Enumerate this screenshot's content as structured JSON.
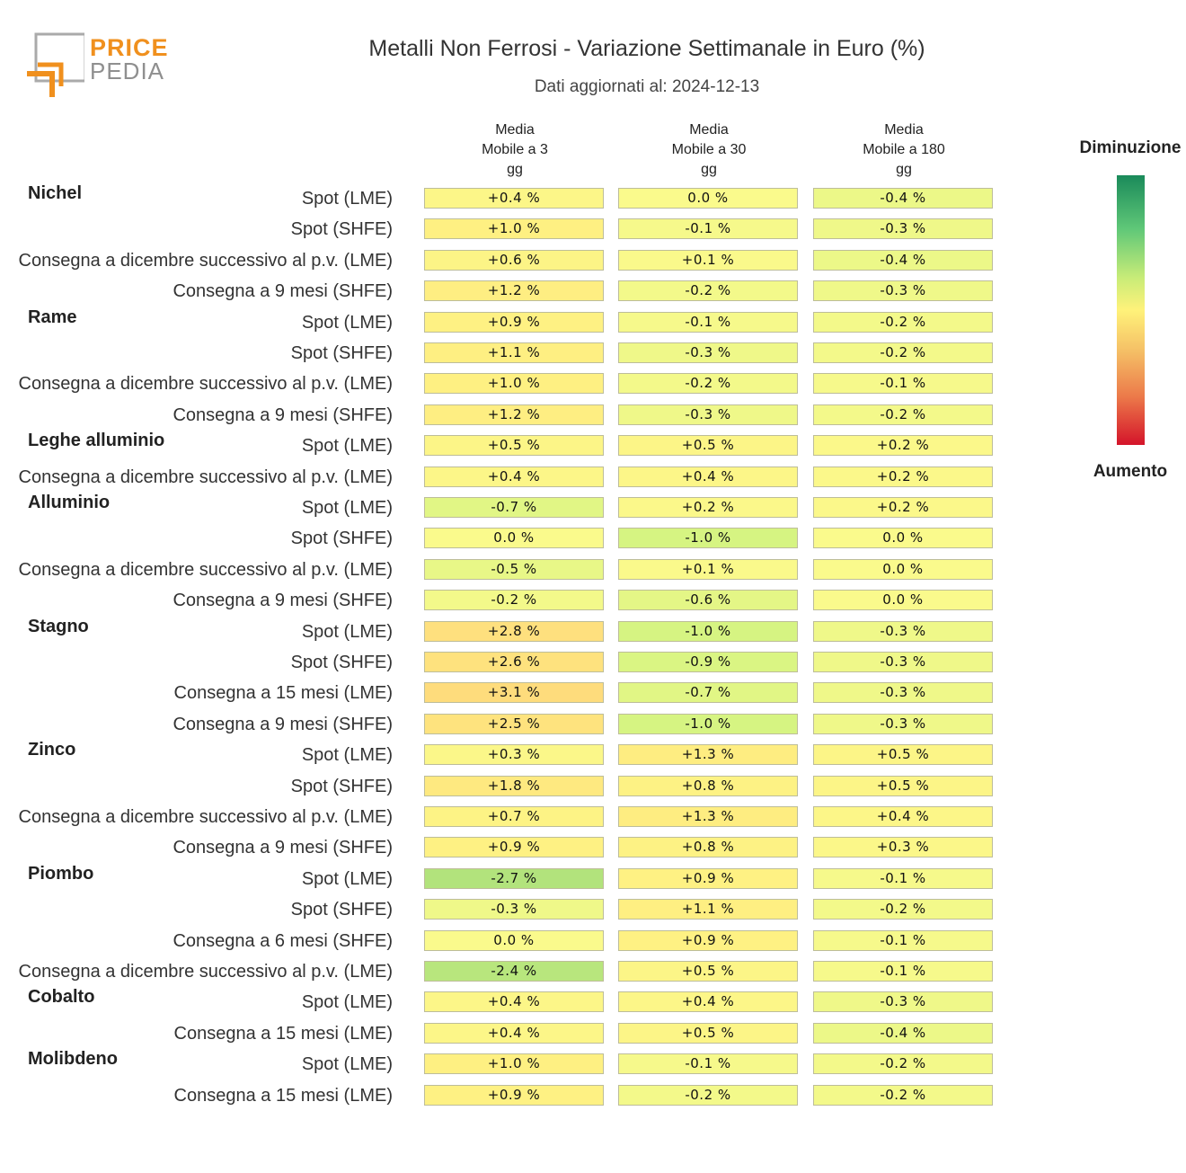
{
  "logo": {
    "line1": "PRICE",
    "line2": "PEDIA"
  },
  "chart_data": {
    "type": "table",
    "title": "Metalli Non Ferrosi - Variazione Settimanale in Euro (%)",
    "subtitle": "Dati aggiornati al: 2024-12-13",
    "columns": [
      "Media\nMobile a 3\ngg",
      "Media\nMobile a 30\ngg",
      "Media\nMobile a 180\ngg"
    ],
    "legend": {
      "top": "Diminuzione",
      "bottom": "Aumento"
    },
    "groups": [
      {
        "name": "Nichel",
        "rows": [
          {
            "label": "Spot (LME)",
            "values": [
              "+0.4 %",
              "0.0 %",
              "-0.4 %"
            ]
          },
          {
            "label": "Spot (SHFE)",
            "values": [
              "+1.0 %",
              "-0.1 %",
              "-0.3 %"
            ]
          },
          {
            "label": "Consegna a dicembre successivo al p.v. (LME)",
            "values": [
              "+0.6 %",
              "+0.1 %",
              "-0.4 %"
            ]
          },
          {
            "label": "Consegna a 9 mesi (SHFE)",
            "values": [
              "+1.2 %",
              "-0.2 %",
              "-0.3 %"
            ]
          }
        ]
      },
      {
        "name": "Rame",
        "rows": [
          {
            "label": "Spot (LME)",
            "values": [
              "+0.9 %",
              "-0.1 %",
              "-0.2 %"
            ]
          },
          {
            "label": "Spot (SHFE)",
            "values": [
              "+1.1 %",
              "-0.3 %",
              "-0.2 %"
            ]
          },
          {
            "label": "Consegna a dicembre successivo al p.v. (LME)",
            "values": [
              "+1.0 %",
              "-0.2 %",
              "-0.1 %"
            ]
          },
          {
            "label": "Consegna a 9 mesi (SHFE)",
            "values": [
              "+1.2 %",
              "-0.3 %",
              "-0.2 %"
            ]
          }
        ]
      },
      {
        "name": "Leghe alluminio",
        "rows": [
          {
            "label": "Spot (LME)",
            "values": [
              "+0.5 %",
              "+0.5 %",
              "+0.2 %"
            ]
          },
          {
            "label": "Consegna a dicembre successivo al p.v. (LME)",
            "values": [
              "+0.4 %",
              "+0.4 %",
              "+0.2 %"
            ]
          }
        ]
      },
      {
        "name": "Alluminio",
        "rows": [
          {
            "label": "Spot (LME)",
            "values": [
              "-0.7 %",
              "+0.2 %",
              "+0.2 %"
            ]
          },
          {
            "label": "Spot (SHFE)",
            "values": [
              "0.0 %",
              "-1.0 %",
              "0.0 %"
            ]
          },
          {
            "label": "Consegna a dicembre successivo al p.v. (LME)",
            "values": [
              "-0.5 %",
              "+0.1 %",
              "0.0 %"
            ]
          },
          {
            "label": "Consegna a 9 mesi (SHFE)",
            "values": [
              "-0.2 %",
              "-0.6 %",
              "0.0 %"
            ]
          }
        ]
      },
      {
        "name": "Stagno",
        "rows": [
          {
            "label": "Spot (LME)",
            "values": [
              "+2.8 %",
              "-1.0 %",
              "-0.3 %"
            ]
          },
          {
            "label": "Spot (SHFE)",
            "values": [
              "+2.6 %",
              "-0.9 %",
              "-0.3 %"
            ]
          },
          {
            "label": "Consegna a 15 mesi (LME)",
            "values": [
              "+3.1 %",
              "-0.7 %",
              "-0.3 %"
            ]
          },
          {
            "label": "Consegna a 9 mesi (SHFE)",
            "values": [
              "+2.5 %",
              "-1.0 %",
              "-0.3 %"
            ]
          }
        ]
      },
      {
        "name": "Zinco",
        "rows": [
          {
            "label": "Spot (LME)",
            "values": [
              "+0.3 %",
              "+1.3 %",
              "+0.5 %"
            ]
          },
          {
            "label": "Spot (SHFE)",
            "values": [
              "+1.8 %",
              "+0.8 %",
              "+0.5 %"
            ]
          },
          {
            "label": "Consegna a dicembre successivo al p.v. (LME)",
            "values": [
              "+0.7 %",
              "+1.3 %",
              "+0.4 %"
            ]
          },
          {
            "label": "Consegna a 9 mesi (SHFE)",
            "values": [
              "+0.9 %",
              "+0.8 %",
              "+0.3 %"
            ]
          }
        ]
      },
      {
        "name": "Piombo",
        "rows": [
          {
            "label": "Spot (LME)",
            "values": [
              "-2.7 %",
              "+0.9 %",
              "-0.1 %"
            ]
          },
          {
            "label": "Spot (SHFE)",
            "values": [
              "-0.3 %",
              "+1.1 %",
              "-0.2 %"
            ]
          },
          {
            "label": "Consegna a 6 mesi (SHFE)",
            "values": [
              "0.0 %",
              "+0.9 %",
              "-0.1 %"
            ]
          },
          {
            "label": "Consegna a dicembre successivo al p.v. (LME)",
            "values": [
              "-2.4 %",
              "+0.5 %",
              "-0.1 %"
            ]
          }
        ]
      },
      {
        "name": "Cobalto",
        "rows": [
          {
            "label": "Spot (LME)",
            "values": [
              "+0.4 %",
              "+0.4 %",
              "-0.3 %"
            ]
          },
          {
            "label": "Consegna a 15 mesi (LME)",
            "values": [
              "+0.4 %",
              "+0.5 %",
              "-0.4 %"
            ]
          }
        ]
      },
      {
        "name": "Molibdeno",
        "rows": [
          {
            "label": "Spot (LME)",
            "values": [
              "+1.0 %",
              "-0.1 %",
              "-0.2 %"
            ]
          },
          {
            "label": "Consegna a 15 mesi (LME)",
            "values": [
              "+0.9 %",
              "-0.2 %",
              "-0.2 %"
            ]
          }
        ]
      }
    ]
  }
}
